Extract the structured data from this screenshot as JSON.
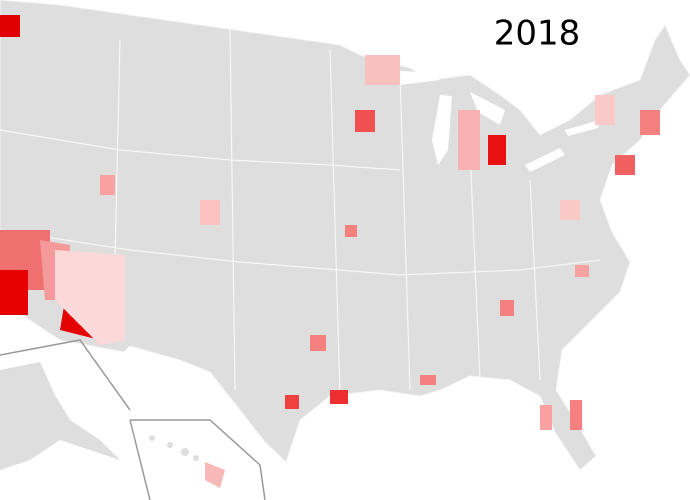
{
  "title": "2018"
}
